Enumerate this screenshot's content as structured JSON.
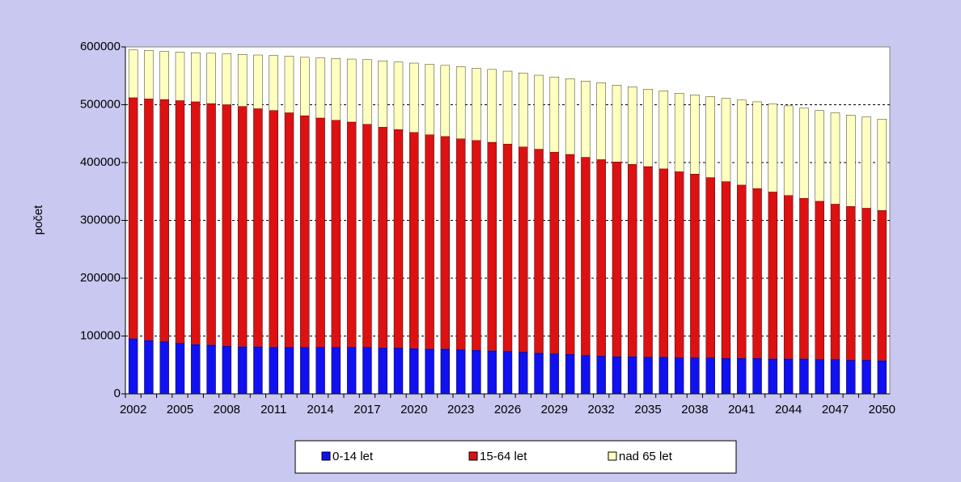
{
  "chart_data": {
    "type": "stacked_bar",
    "y_label": "počet",
    "categories": [
      "2002",
      null,
      null,
      "2005",
      null,
      null,
      "2008",
      null,
      null,
      "2011",
      null,
      null,
      "2014",
      null,
      null,
      "2017",
      null,
      null,
      "2020",
      null,
      null,
      "2023",
      null,
      null,
      "2026",
      null,
      null,
      "2029",
      null,
      null,
      "2032",
      null,
      null,
      "2035",
      null,
      null,
      "2038",
      null,
      null,
      "2041",
      null,
      null,
      "2044",
      null,
      null,
      "2047",
      null,
      null,
      "2050"
    ],
    "series": [
      {
        "name": "0-14 let",
        "color": "#1010f0",
        "values": [
          95000,
          92000,
          90000,
          87000,
          85000,
          84000,
          82000,
          81000,
          81000,
          80000,
          80000,
          80000,
          80000,
          80000,
          80000,
          80000,
          79000,
          79000,
          78000,
          77000,
          77000,
          76000,
          75000,
          74000,
          73000,
          72000,
          70000,
          69000,
          68000,
          66000,
          65000,
          64000,
          64000,
          63000,
          63000,
          62000,
          62000,
          62000,
          61000,
          61000,
          61000,
          60000,
          60000,
          60000,
          59000,
          59000,
          58000,
          58000,
          57000
        ]
      },
      {
        "name": "15-64 let",
        "color": "#dd1111",
        "values": [
          417000,
          418000,
          419000,
          420000,
          420000,
          418000,
          418000,
          416000,
          412000,
          410000,
          406000,
          401000,
          397000,
          393000,
          390000,
          386000,
          382000,
          378000,
          374000,
          371000,
          368000,
          365000,
          363000,
          361000,
          359000,
          355000,
          353000,
          349000,
          346000,
          343000,
          340000,
          337000,
          333000,
          330000,
          326000,
          322000,
          318000,
          312000,
          306000,
          300000,
          294000,
          289000,
          283000,
          278000,
          274000,
          269000,
          266000,
          263000,
          260000
        ]
      },
      {
        "name": "nad 65 let",
        "color": "#ffffc0",
        "values": [
          83000,
          84000,
          83000,
          84000,
          85000,
          87000,
          88000,
          90000,
          93000,
          95000,
          98000,
          101000,
          104000,
          107000,
          109000,
          112000,
          115000,
          117000,
          120000,
          122000,
          123000,
          125000,
          125000,
          126000,
          126000,
          128000,
          128000,
          130000,
          131000,
          132000,
          133000,
          133000,
          134000,
          134000,
          135000,
          136000,
          137000,
          140000,
          144000,
          147000,
          150000,
          152000,
          155000,
          156000,
          157000,
          158000,
          158000,
          158000,
          158000
        ]
      }
    ],
    "ylim": [
      0,
      600000
    ],
    "yticks": [
      0,
      100000,
      200000,
      300000,
      400000,
      500000,
      600000
    ],
    "grid": true,
    "legend": "bottom"
  }
}
